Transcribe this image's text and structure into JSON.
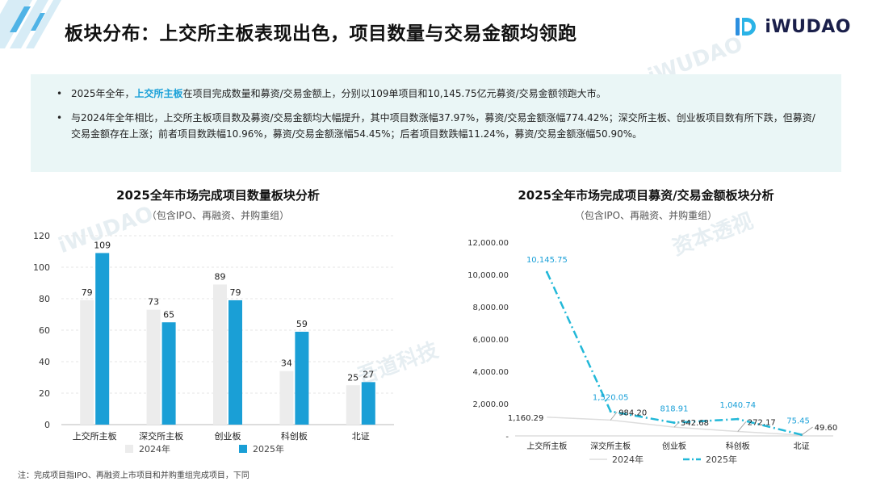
{
  "header": {
    "title": "板块分布：上交所主板表现出色，项目数量与交易金额均领跑",
    "logo_text": "iWUDAO"
  },
  "summary": {
    "b1_pre": "2025年全年，",
    "b1_highlight": "上交所主板",
    "b1_post": "在项目完成数量和募资/交易金额上，分别以109单项目和10,145.75亿元募资/交易金额领跑大市。",
    "b2": "与2024年全年相比，上交所主板项目数及募资/交易金额均大幅提升，其中项目数涨幅37.97%，募资/交易金额涨幅774.42%；深交所主板、创业板项目数有所下跌，但募资/交易金额存在上涨；前者项目数跌幅10.96%，募资/交易金额涨幅54.45%；后者项目数跌幅11.24%，募资/交易金额涨幅50.90%。"
  },
  "colors": {
    "bar2024": "#ececec",
    "bar2025": "#1a9fd6",
    "line2025": "#22b8d8",
    "line2024": "#dddddd",
    "accent": "#1aa0d8"
  },
  "chart_data": [
    {
      "type": "bar",
      "title": "2025全年市场完成项目数量板块分析",
      "subtitle": "（包含IPO、再融资、并购重组）",
      "categories": [
        "上交所主板",
        "深交所主板",
        "创业板",
        "科创板",
        "北证"
      ],
      "series": [
        {
          "name": "2024年",
          "values": [
            79,
            73,
            89,
            34,
            25
          ]
        },
        {
          "name": "2025年",
          "values": [
            109,
            65,
            79,
            59,
            27
          ]
        }
      ],
      "ylim": [
        0,
        120
      ],
      "yticks": [
        "0",
        "20",
        "40",
        "60",
        "80",
        "100",
        "120"
      ],
      "legend": "bottom"
    },
    {
      "type": "line",
      "title": "2025全年市场完成项目募资/交易金额板块分析",
      "subtitle": "（包含IPO、再融资、并购重组）",
      "categories": [
        "上交所主板",
        "深交所主板",
        "创业板",
        "科创板",
        "北证"
      ],
      "series": [
        {
          "name": "2024年",
          "values": [
            1160.29,
            984.2,
            542.68,
            272.17,
            49.6
          ],
          "labels": [
            "1,160.29",
            "984.20",
            "542.68",
            "272.17",
            "49.60"
          ]
        },
        {
          "name": "2025年",
          "values": [
            10145.75,
            1520.05,
            818.91,
            1040.74,
            75.45
          ],
          "labels": [
            "10,145.75",
            "1,520.05",
            "818.91",
            "1,040.74",
            "75.45"
          ]
        }
      ],
      "ylim": [
        0,
        12000
      ],
      "yticks": [
        "-",
        "2,000.00",
        "4,000.00",
        "6,000.00",
        "8,000.00",
        "10,000.00",
        "12,000.00"
      ],
      "legend": "bottom"
    }
  ],
  "footnote": "注：完成项目指IPO、再融资上市项目和并购重组完成项目，下同",
  "watermarks": [
    "吾道科技",
    "iWUDAO",
    "资本透视"
  ]
}
